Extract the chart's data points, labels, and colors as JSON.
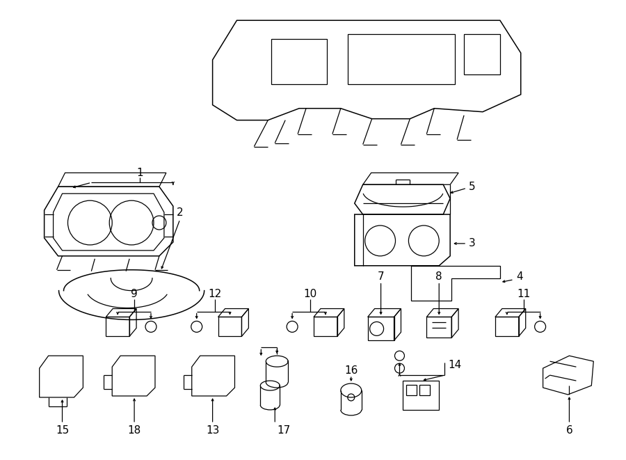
{
  "bg_color": "#ffffff",
  "lc": "#000000",
  "lw": 0.9,
  "lw2": 1.1,
  "fig_w": 9.0,
  "fig_h": 6.61,
  "dpi": 100
}
